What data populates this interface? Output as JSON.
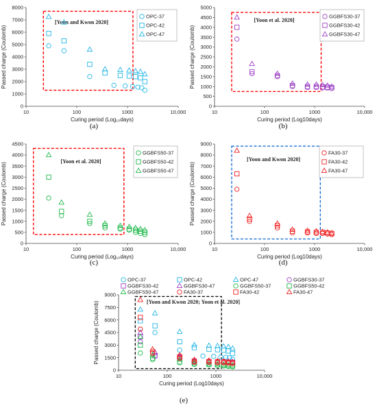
{
  "chart_data": [
    {
      "type": "scatter",
      "panel_label": "(a)",
      "xlabel": "Curing period (Log₁₀days)",
      "ylabel": "Passed charge (Coulomb)",
      "x_scale": "log",
      "xlim": [
        10,
        10000
      ],
      "ylim": [
        0,
        8000
      ],
      "x_ticks": [
        "10",
        "100",
        "1000",
        "10,000"
      ],
      "y_ticks": [
        "0",
        "1000",
        "2000",
        "3000",
        "4000",
        "5000",
        "6000",
        "7000",
        "8000"
      ],
      "y_tick_values": [
        0,
        1000,
        2000,
        3000,
        4000,
        5000,
        6000,
        7000,
        8000
      ],
      "legend_position": "top-right",
      "annotation": {
        "text": "[Yoon and Kwon 2020]",
        "box_color": "#ff0000",
        "box_x": [
          22,
          1280
        ],
        "box_y": [
          1300,
          7700
        ]
      },
      "series": [
        {
          "name": "OPC-37",
          "marker": "circle",
          "color": "#1fb4e6",
          "x": [
            28,
            56,
            180,
            540,
            900,
            1260,
            1600,
            1900,
            2200
          ],
          "y": [
            4900,
            4500,
            2400,
            1700,
            1650,
            1600,
            1550,
            1500,
            1300
          ]
        },
        {
          "name": "OPC-42",
          "marker": "square",
          "color": "#1fb4e6",
          "x": [
            28,
            56,
            180,
            360,
            720,
            1080,
            1440,
            1800,
            2200
          ],
          "y": [
            5900,
            5300,
            3400,
            2700,
            2500,
            2450,
            2400,
            2300,
            2000
          ]
        },
        {
          "name": "OPC-47",
          "marker": "triangle",
          "color": "#1fb4e6",
          "x": [
            28,
            56,
            180,
            360,
            720,
            1080,
            1440,
            1800,
            2200
          ],
          "y": [
            7250,
            6800,
            4600,
            3000,
            2950,
            2900,
            2850,
            2800,
            2600
          ]
        }
      ]
    },
    {
      "type": "scatter",
      "panel_label": "(b)",
      "xlabel": "Curing period (Log10days)",
      "ylabel": "Passed charge (Coulomb)",
      "x_scale": "log",
      "xlim": [
        10,
        10000
      ],
      "ylim": [
        0,
        5000
      ],
      "x_ticks": [
        "10",
        "100",
        "1000",
        "10,000"
      ],
      "y_ticks": [
        "0",
        "500",
        "1000",
        "1500",
        "2000",
        "2500",
        "3000",
        "3500",
        "4000",
        "4500",
        "5000"
      ],
      "y_tick_values": [
        0,
        500,
        1000,
        1500,
        2000,
        2500,
        3000,
        3500,
        4000,
        4500,
        5000
      ],
      "legend_position": "top-right",
      "annotation": {
        "text": "[Yoon et al. 2020]",
        "box_color": "#ff0000",
        "box_x": [
          22,
          1350
        ],
        "box_y": [
          750,
          4750
        ]
      },
      "series": [
        {
          "name": "GGBFS30-37",
          "marker": "circle",
          "color": "#9b3fc4",
          "x": [
            28,
            56,
            180,
            360,
            720,
            1080,
            1440,
            1800,
            2200
          ],
          "y": [
            3400,
            1650,
            1500,
            1000,
            950,
            950,
            930,
            920,
            900
          ]
        },
        {
          "name": "GGBFS30-42",
          "marker": "square",
          "color": "#9b3fc4",
          "x": [
            28,
            56,
            180,
            360,
            720,
            1080,
            1440,
            1800,
            2200
          ],
          "y": [
            4000,
            1750,
            1550,
            1050,
            1000,
            1000,
            980,
            970,
            950
          ]
        },
        {
          "name": "GGBFS30-47",
          "marker": "triangle",
          "color": "#9b3fc4",
          "x": [
            28,
            56,
            180,
            360,
            720,
            1080,
            1440,
            1800,
            2200
          ],
          "y": [
            4500,
            2150,
            1650,
            1150,
            1100,
            1100,
            1080,
            1050,
            1000
          ]
        }
      ]
    },
    {
      "type": "scatter",
      "panel_label": "(c)",
      "xlabel": "Curing period (Log₁₀days)",
      "ylabel": "Passed charge (Coulomb)",
      "x_scale": "log",
      "xlim": [
        10,
        10000
      ],
      "ylim": [
        0,
        4500
      ],
      "x_ticks": [
        "10",
        "100",
        "1000",
        "10,000"
      ],
      "y_ticks": [
        "0",
        "500",
        "1000",
        "1500",
        "2000",
        "2500",
        "3000",
        "3500",
        "4000",
        "4500"
      ],
      "y_tick_values": [
        0,
        500,
        1000,
        1500,
        2000,
        2500,
        3000,
        3500,
        4000,
        4500
      ],
      "legend_position": "top-right",
      "annotation": {
        "text": "[Yoon et al. 2020]",
        "box_color": "#ff0000",
        "box_x": [
          14,
          850
        ],
        "box_y": [
          400,
          4300
        ]
      },
      "series": [
        {
          "name": "GGBFS50-37",
          "marker": "circle",
          "color": "#1fb84a",
          "x": [
            28,
            50,
            180,
            360,
            720,
            1080,
            1440,
            1800,
            2200
          ],
          "y": [
            2050,
            1250,
            900,
            700,
            650,
            600,
            500,
            450,
            400
          ]
        },
        {
          "name": "GGBFS50-42",
          "marker": "square",
          "color": "#1fb84a",
          "x": [
            28,
            50,
            180,
            360,
            720,
            1080,
            1440,
            1800,
            2200
          ],
          "y": [
            3000,
            1450,
            1000,
            800,
            700,
            650,
            600,
            550,
            500
          ]
        },
        {
          "name": "GGBFS50-47",
          "marker": "triangle",
          "color": "#1fb84a",
          "x": [
            28,
            50,
            180,
            360,
            720,
            1080,
            1440,
            1800,
            2200
          ],
          "y": [
            4000,
            1850,
            1300,
            900,
            800,
            750,
            700,
            650,
            600
          ]
        }
      ]
    },
    {
      "type": "scatter",
      "panel_label": "(d)",
      "xlabel": "Curing period (Log10days)",
      "ylabel": "Passed charge (Coulomb)",
      "x_scale": "log",
      "xlim": [
        10,
        10000
      ],
      "ylim": [
        0,
        9000
      ],
      "x_ticks": [
        "10",
        "100",
        "1000",
        "10,000"
      ],
      "y_ticks": [
        "0",
        "1000",
        "2000",
        "3000",
        "4000",
        "5000",
        "6000",
        "7000",
        "8000",
        "9000"
      ],
      "y_tick_values": [
        0,
        1000,
        2000,
        3000,
        4000,
        5000,
        6000,
        7000,
        8000,
        9000
      ],
      "legend_position": "top-right",
      "annotation": {
        "text": "[Yoon and Kwon 2020]",
        "box_color": "#1a6fd6",
        "box_x": [
          22,
          1300
        ],
        "box_y": [
          400,
          8800
        ]
      },
      "series": [
        {
          "name": "FA30-37",
          "marker": "circle",
          "color": "#f02020",
          "x": [
            28,
            50,
            180,
            360,
            720,
            1080,
            1440,
            1800,
            2200
          ],
          "y": [
            4900,
            2000,
            1400,
            950,
            950,
            900,
            900,
            850,
            800
          ]
        },
        {
          "name": "FA30-42",
          "marker": "square",
          "color": "#f02020",
          "x": [
            28,
            50,
            180,
            360,
            720,
            1080,
            1440,
            1800,
            2200
          ],
          "y": [
            6300,
            2200,
            1600,
            1100,
            1050,
            1000,
            1000,
            950,
            900
          ]
        },
        {
          "name": "FA30-47",
          "marker": "triangle",
          "color": "#f02020",
          "x": [
            28,
            50,
            180,
            360,
            720,
            1080,
            1440,
            1800,
            2200
          ],
          "y": [
            8400,
            2500,
            1800,
            1250,
            1150,
            1100,
            1050,
            1000,
            950
          ]
        }
      ]
    },
    {
      "type": "scatter",
      "panel_label": "(e)",
      "xlabel": "Curing period (Log10days)",
      "ylabel": "Passed charge (Coulomb)",
      "x_scale": "log",
      "xlim": [
        10,
        10000
      ],
      "ylim": [
        0,
        9000
      ],
      "x_ticks": [
        "10",
        "100",
        "1000",
        "10,000"
      ],
      "y_ticks": [
        "0",
        "1500",
        "3000",
        "4500",
        "6000",
        "7500",
        "9000"
      ],
      "y_tick_values": [
        0,
        1500,
        3000,
        4500,
        6000,
        7500,
        9000
      ],
      "legend_position": "top",
      "annotation": {
        "text": "[Yoon and Kwon 2020; Yoon et al. 2020]",
        "box_color": "#111111",
        "box_x": [
          22,
          1300
        ],
        "box_y": [
          200,
          8800
        ]
      },
      "series_ref": "all twelve series of panels (a)–(d)"
    }
  ]
}
